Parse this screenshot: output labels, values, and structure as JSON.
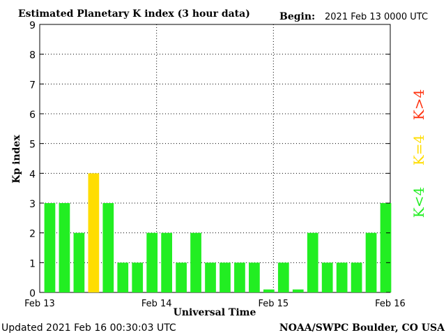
{
  "header": {
    "title": "Estimated Planetary K index (3 hour data)",
    "begin_label": "Begin:",
    "begin_value": "2021 Feb 13 0000 UTC"
  },
  "footer": {
    "updated": "Updated 2021 Feb 16 00:30:03 UTC",
    "credit": "NOAA/SWPC Boulder, CO USA"
  },
  "legend": {
    "items": [
      {
        "label": "K<4",
        "color": "#22ee22"
      },
      {
        "label": "K=4",
        "color": "#ffdd00"
      },
      {
        "label": "K>4",
        "color": "#ff3311"
      }
    ]
  },
  "chart_data": {
    "type": "bar",
    "title": "Estimated Planetary K index (3 hour data)",
    "xlabel": "Universal Time",
    "ylabel": "Kp index",
    "ylim": [
      0,
      9
    ],
    "yticks": [
      "0",
      "1",
      "2",
      "3",
      "4",
      "5",
      "6",
      "7",
      "8",
      "9"
    ],
    "xticks": [
      "Feb 13",
      "Feb 14",
      "Feb 15",
      "Feb 16"
    ],
    "grid": true,
    "colors": {
      "below4": "#22ee22",
      "eq4": "#ffdd00",
      "above4": "#ff3311"
    },
    "values": [
      3,
      3,
      2,
      4,
      3,
      1,
      1,
      2,
      2,
      1,
      2,
      1,
      1,
      1,
      1,
      0.1,
      1,
      0.1,
      2,
      1,
      1,
      1,
      2,
      3
    ]
  }
}
